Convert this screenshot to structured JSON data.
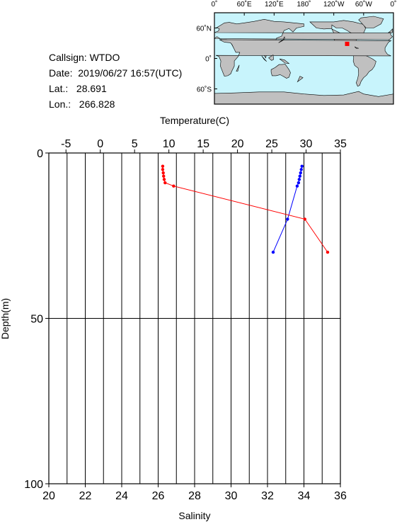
{
  "info": {
    "callsign": "Callsign: WTDO",
    "date": "Date:  2019/06/27 16:57(UTC)",
    "lat": "Lat.:   28.691",
    "lon": "Lon.:   266.828"
  },
  "map": {
    "top_ticks": [
      "0˚",
      "60˚E",
      "120˚E",
      "180˚",
      "120˚W",
      "60˚W",
      "0˚"
    ],
    "left_ticks": [
      "60˚N",
      "0˚",
      "60˚S"
    ],
    "ocean_color": "#c8f4fc",
    "land_color": "#c0c0c0",
    "marker_color": "#ff0000",
    "marker_lon": 266.828,
    "marker_lat": 28.691
  },
  "chart_data": {
    "type": "line",
    "top_axis_label": "Temperature(C)",
    "bottom_axis_label": "Salinity",
    "left_axis_label": "Depth(m)",
    "temperature_ticks": [
      "-5",
      "0",
      "5",
      "10",
      "15",
      "20",
      "25",
      "30",
      "35"
    ],
    "salinity_ticks": [
      "20",
      "22",
      "24",
      "26",
      "28",
      "30",
      "32",
      "34",
      "36"
    ],
    "depth_ticks": [
      "0",
      "50",
      "100"
    ],
    "temperature_range": [
      -7.5,
      35
    ],
    "salinity_range": [
      20,
      36
    ],
    "depth_range": [
      0,
      100
    ],
    "grid": true,
    "series": [
      {
        "axis": "temperature",
        "color": "#0000ff",
        "depth": [
          4,
          5,
          6,
          7,
          8,
          9,
          10,
          20,
          30
        ],
        "values": [
          29.4,
          29.3,
          29.2,
          29.1,
          29.0,
          28.9,
          28.7,
          27.3,
          25.2
        ]
      },
      {
        "axis": "salinity",
        "color": "#ff0000",
        "depth": [
          4,
          5,
          6,
          7,
          8,
          9,
          10,
          20,
          30
        ],
        "values": [
          26.25,
          26.25,
          26.28,
          26.3,
          26.33,
          26.38,
          26.85,
          34.05,
          35.3
        ]
      }
    ]
  }
}
